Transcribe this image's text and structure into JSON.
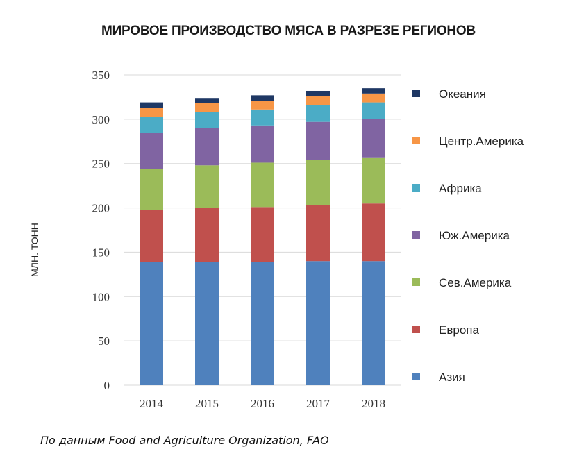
{
  "title": "МИРОВОЕ ПРОИЗВОДСТВО МЯСА В РАЗРЕЗЕ РЕГИОНОВ",
  "source": "По данным Food and Agriculture Organization, FAO",
  "chart_data": {
    "type": "bar",
    "stacked": true,
    "title": "МИРОВОЕ ПРОИЗВОДСТВО МЯСА В РАЗРЕЗЕ РЕГИОНОВ",
    "xlabel": "",
    "ylabel": "МЛН. ТОНН",
    "ylim": [
      0,
      350
    ],
    "yticks": [
      0,
      50,
      100,
      150,
      200,
      250,
      300,
      350
    ],
    "grid": true,
    "legend_position": "right",
    "categories": [
      "2014",
      "2015",
      "2016",
      "2017",
      "2018"
    ],
    "series": [
      {
        "name": "Азия",
        "color": "#4f81bd",
        "values": [
          139,
          139,
          139,
          140,
          140
        ]
      },
      {
        "name": "Европа",
        "color": "#c0504d",
        "values": [
          59,
          61,
          62,
          63,
          65
        ]
      },
      {
        "name": "Сев.Америка",
        "color": "#9bbb59",
        "values": [
          46,
          48,
          50,
          51,
          52
        ]
      },
      {
        "name": "Юж.Америка",
        "color": "#8064a2",
        "values": [
          41,
          42,
          42,
          43,
          43
        ]
      },
      {
        "name": "Африка",
        "color": "#4bacc6",
        "values": [
          18,
          18,
          18,
          19,
          19
        ]
      },
      {
        "name": "Центр.Америка",
        "color": "#f79646",
        "values": [
          10,
          10,
          10,
          10,
          10
        ]
      },
      {
        "name": "Океания",
        "color": "#1f3864",
        "values": [
          6,
          6,
          6,
          6,
          6
        ]
      }
    ]
  }
}
